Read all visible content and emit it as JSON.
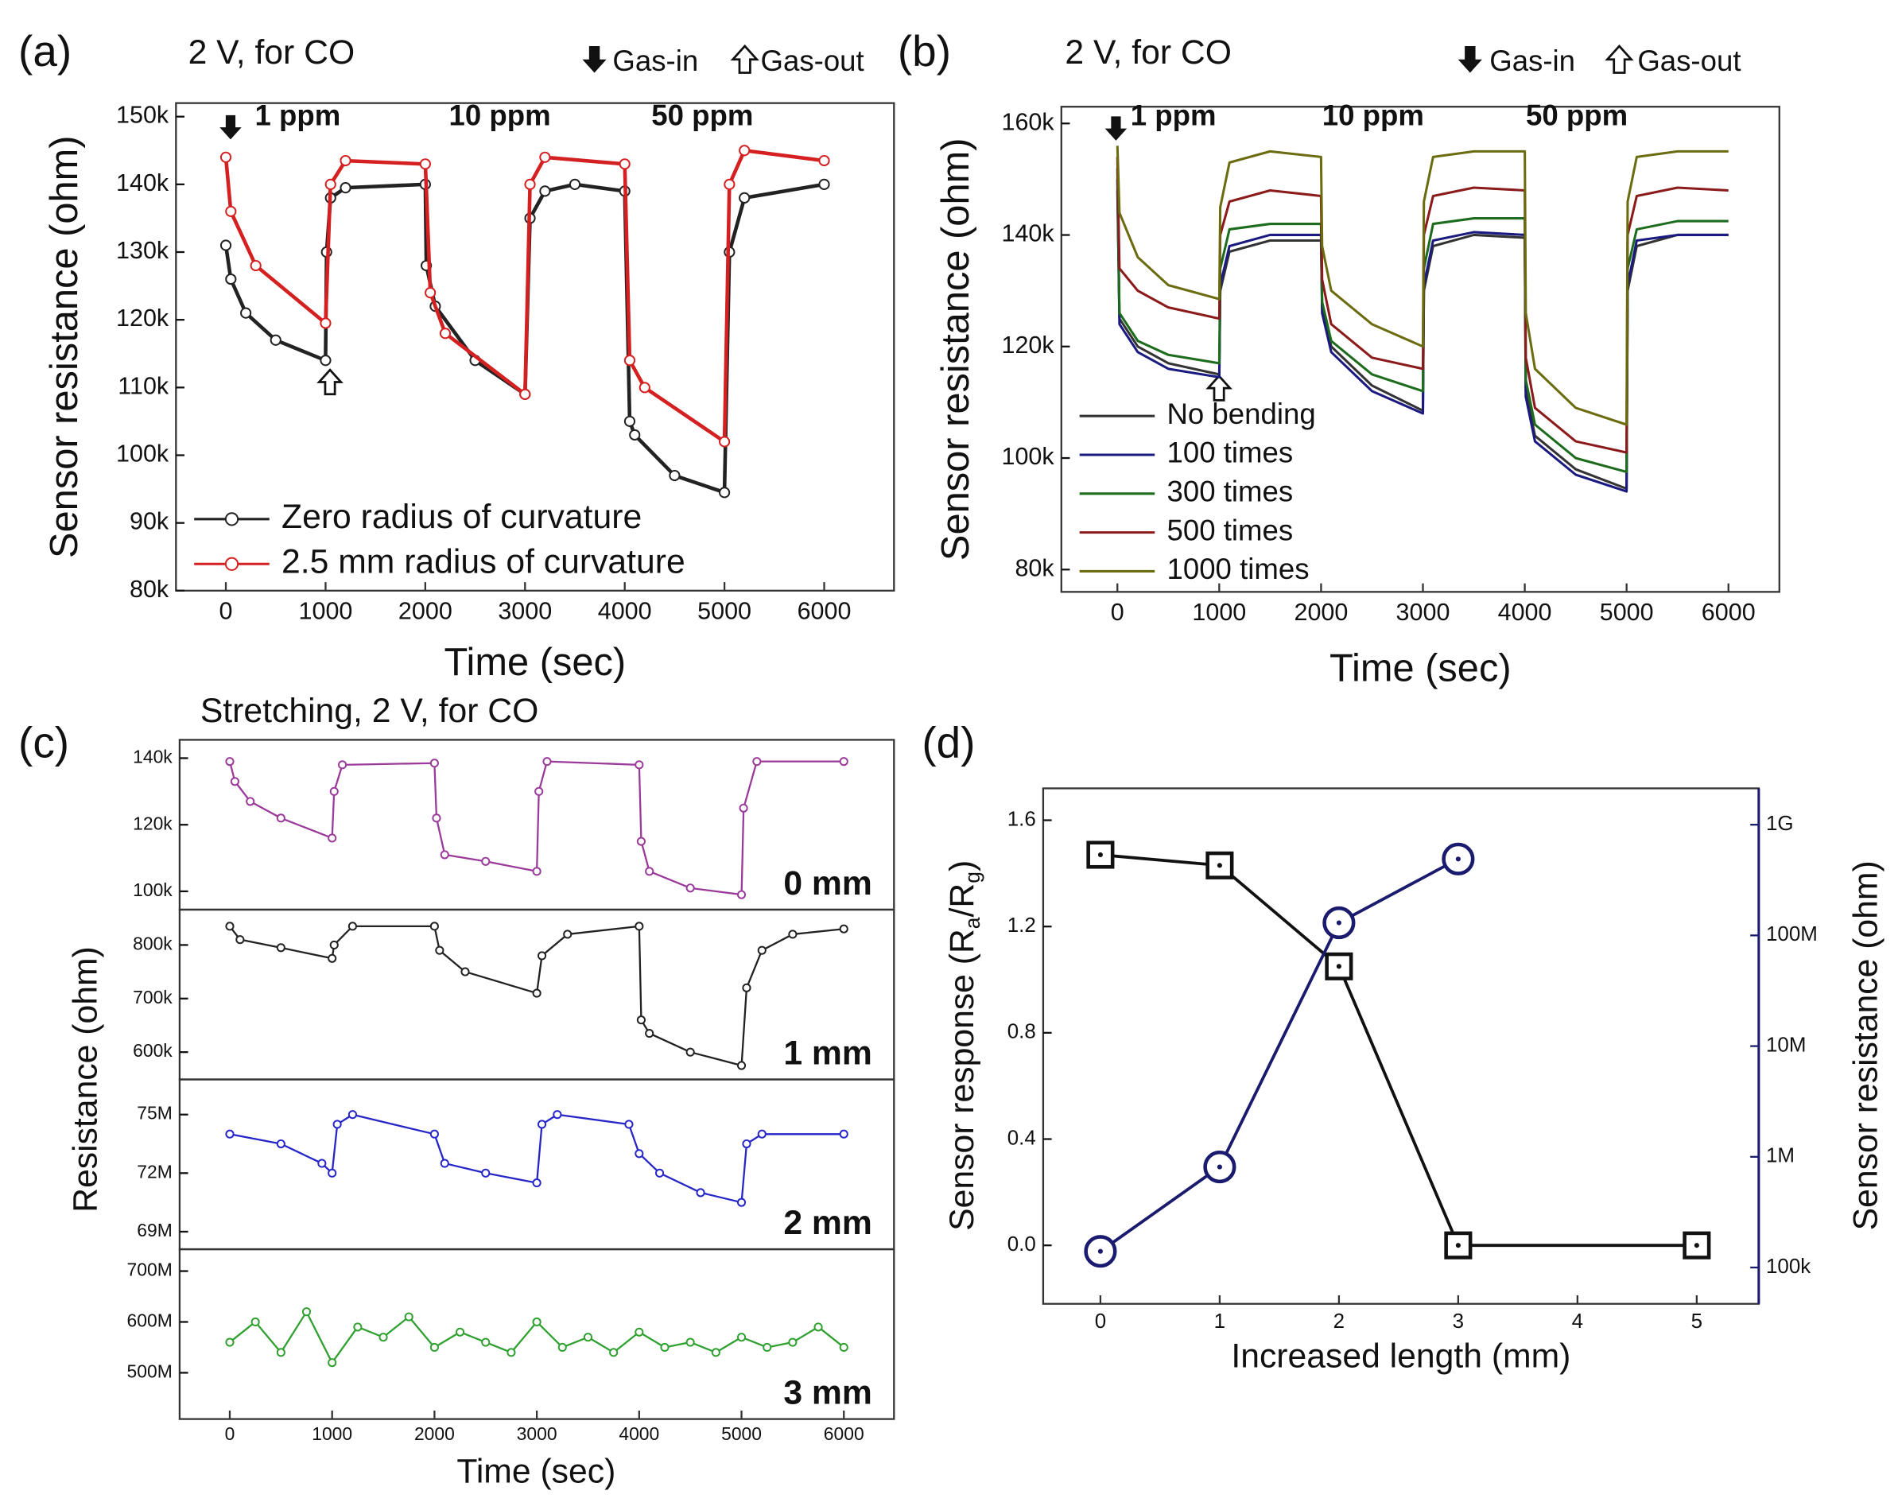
{
  "chart_data": [
    {
      "type": "line",
      "panel_label": "(a)",
      "title": "2 V, for CO",
      "annotations": {
        "gas_in": "Gas-in",
        "gas_out": "Gas-out",
        "concentrations": [
          "1 ppm",
          "10 ppm",
          "50 ppm"
        ]
      },
      "x_label": "Time (sec)",
      "y_label": "Sensor resistance (ohm)",
      "xlim": [
        -500,
        6700
      ],
      "xticks": [
        0,
        1000,
        2000,
        3000,
        4000,
        5000,
        6000
      ],
      "ylim": [
        80000,
        152000
      ],
      "yticks": [
        {
          "value": 80000,
          "label": "80k"
        },
        {
          "value": 90000,
          "label": "90k"
        },
        {
          "value": 100000,
          "label": "100k"
        },
        {
          "value": 110000,
          "label": "110k"
        },
        {
          "value": 120000,
          "label": "120k"
        },
        {
          "value": 130000,
          "label": "130k"
        },
        {
          "value": 140000,
          "label": "140k"
        },
        {
          "value": 150000,
          "label": "150k"
        }
      ],
      "legend": "lower left",
      "series": [
        {
          "name": "Zero radius of curvature",
          "color": "#222222",
          "marker": "circle",
          "x": [
            0,
            50,
            200,
            500,
            1000,
            1010,
            1050,
            1200,
            2000,
            2010,
            2100,
            2500,
            3000,
            3050,
            3200,
            3500,
            4000,
            4050,
            4100,
            4500,
            5000,
            5050,
            5200,
            6000
          ],
          "values": [
            131000,
            126000,
            121000,
            117000,
            114000,
            130000,
            138000,
            139500,
            140000,
            128000,
            122000,
            114000,
            109000,
            135000,
            139000,
            140000,
            139000,
            105000,
            103000,
            97000,
            94500,
            130000,
            138000,
            140000
          ]
        },
        {
          "name": "2.5 mm radius of curvature",
          "color": "#d42020",
          "marker": "circle",
          "x": [
            0,
            50,
            300,
            1000,
            1050,
            1200,
            2000,
            2050,
            2200,
            3000,
            3050,
            3200,
            4000,
            4050,
            4200,
            5000,
            5050,
            5200,
            6000
          ],
          "values": [
            144000,
            136000,
            128000,
            119500,
            140000,
            143500,
            143000,
            124000,
            118000,
            109000,
            140000,
            144000,
            143000,
            114000,
            110000,
            102000,
            140000,
            145000,
            143500
          ]
        }
      ]
    },
    {
      "type": "line",
      "panel_label": "(b)",
      "title": "2 V, for CO",
      "annotations": {
        "gas_in": "Gas-in",
        "gas_out": "Gas-out",
        "concentrations": [
          "1 ppm",
          "10 ppm",
          "50 ppm"
        ]
      },
      "x_label": "Time (sec)",
      "y_label": "Sensor resistance (ohm)",
      "xlim": [
        -550,
        6500
      ],
      "xticks": [
        0,
        1000,
        2000,
        3000,
        4000,
        5000,
        6000
      ],
      "ylim": [
        76000,
        163000
      ],
      "yticks": [
        {
          "value": 80000,
          "label": "80k"
        },
        {
          "value": 100000,
          "label": "100k"
        },
        {
          "value": 120000,
          "label": "120k"
        },
        {
          "value": 140000,
          "label": "140k"
        },
        {
          "value": 160000,
          "label": "160k"
        }
      ],
      "legend": "lower left",
      "x": [
        0,
        20,
        200,
        500,
        1000,
        1010,
        1100,
        1500,
        2000,
        2010,
        2100,
        2500,
        3000,
        3010,
        3100,
        3500,
        4000,
        4010,
        4100,
        4500,
        5000,
        5010,
        5100,
        5500,
        6000
      ],
      "series": [
        {
          "name": "No bending",
          "color": "#333333",
          "values": [
            148000,
            125000,
            120000,
            117000,
            115000,
            130000,
            137000,
            139000,
            139000,
            127000,
            120000,
            113000,
            108500,
            130000,
            138000,
            140000,
            139500,
            112000,
            104000,
            98000,
            94500,
            130000,
            138000,
            140000,
            140000
          ]
        },
        {
          "name": "100 times",
          "color": "#1a1a80",
          "values": [
            150000,
            124000,
            119000,
            116000,
            114500,
            131000,
            138000,
            140000,
            140000,
            126000,
            119000,
            112000,
            108000,
            131000,
            139000,
            140500,
            140000,
            111000,
            103000,
            97000,
            94000,
            131000,
            139000,
            140000,
            140000
          ]
        },
        {
          "name": "300 times",
          "color": "#1d6b1d",
          "values": [
            152000,
            126000,
            121000,
            118500,
            117000,
            134000,
            141000,
            142000,
            142000,
            128000,
            121000,
            115000,
            112000,
            134000,
            142000,
            143000,
            143000,
            114000,
            106000,
            100000,
            97500,
            134000,
            141000,
            142500,
            142500
          ]
        },
        {
          "name": "500 times",
          "color": "#8b1a1a",
          "values": [
            154000,
            134000,
            130000,
            127000,
            125000,
            140000,
            146000,
            148000,
            147000,
            132000,
            124000,
            118000,
            116000,
            140000,
            147000,
            148500,
            148000,
            118000,
            109000,
            103000,
            101000,
            140000,
            147000,
            148500,
            148000
          ]
        },
        {
          "name": "1000 times",
          "color": "#6b6b10",
          "values": [
            156000,
            144000,
            136000,
            131000,
            128500,
            145000,
            153000,
            155000,
            154000,
            138000,
            130000,
            124000,
            120000,
            146000,
            154000,
            155000,
            155000,
            126000,
            116000,
            109000,
            106000,
            146000,
            154000,
            155000,
            155000
          ]
        }
      ]
    },
    {
      "type": "line",
      "panel_label": "(c)",
      "title": "Stretching, 2 V, for CO",
      "x_label": "Time (sec)",
      "y_label": "Resistance (ohm)",
      "xlim": [
        -490,
        6490
      ],
      "xticks": [
        0,
        1000,
        2000,
        3000,
        4000,
        5000,
        6000
      ],
      "panels": [
        {
          "label": "0 mm",
          "label_color": "#8b1010",
          "color": "#9a3a9a",
          "marker": "circle",
          "ylim": [
            94500,
            145500
          ],
          "yticks": [
            {
              "value": 100000,
              "label": "100k"
            },
            {
              "value": 120000,
              "label": "120k"
            },
            {
              "value": 140000,
              "label": "140k"
            }
          ],
          "x": [
            0,
            50,
            200,
            500,
            1000,
            1020,
            1100,
            2000,
            2020,
            2100,
            2500,
            3000,
            3020,
            3100,
            4000,
            4020,
            4100,
            4500,
            5000,
            5020,
            5150,
            6000
          ],
          "values": [
            139000,
            133000,
            127000,
            122000,
            116000,
            130000,
            138000,
            138500,
            122000,
            111000,
            109000,
            106000,
            130000,
            139000,
            138000,
            115000,
            106000,
            101000,
            99000,
            125000,
            139000,
            139000
          ]
        },
        {
          "label": "1 mm",
          "label_color": "#111111",
          "color": "#222222",
          "marker": "circle",
          "ylim": [
            549000,
            866000
          ],
          "yticks": [
            {
              "value": 600000,
              "label": "600k"
            },
            {
              "value": 700000,
              "label": "700k"
            },
            {
              "value": 800000,
              "label": "800k"
            }
          ],
          "x": [
            0,
            100,
            500,
            1000,
            1020,
            1200,
            2000,
            2050,
            2300,
            3000,
            3050,
            3300,
            4000,
            4020,
            4100,
            4500,
            5000,
            5050,
            5200,
            5500,
            6000
          ],
          "values": [
            835000,
            810000,
            795000,
            775000,
            800000,
            835000,
            835000,
            790000,
            750000,
            710000,
            780000,
            820000,
            835000,
            660000,
            635000,
            600000,
            575000,
            720000,
            790000,
            820000,
            830000
          ]
        },
        {
          "label": "2 mm",
          "label_color": "#1a2a90",
          "color": "#2626c8",
          "marker": "circle",
          "ylim": [
            68100000,
            76800000
          ],
          "yticks": [
            {
              "value": 69000000,
              "label": "69M"
            },
            {
              "value": 72000000,
              "label": "72M"
            },
            {
              "value": 75000000,
              "label": "75M"
            }
          ],
          "x": [
            0,
            500,
            900,
            1000,
            1050,
            1200,
            2000,
            2100,
            2500,
            3000,
            3050,
            3200,
            3900,
            4000,
            4200,
            4600,
            5000,
            5050,
            5200,
            6000
          ],
          "values": [
            74000000,
            73500000,
            72500000,
            72000000,
            74500000,
            75000000,
            74000000,
            72500000,
            72000000,
            71500000,
            74500000,
            75000000,
            74500000,
            73000000,
            72000000,
            71000000,
            70500000,
            73500000,
            74000000,
            74000000
          ]
        },
        {
          "label": "3 mm",
          "label_color": "#1a6a1a",
          "color": "#30a030",
          "marker": "circle",
          "ylim": [
            409000000,
            743000000
          ],
          "yticks": [
            {
              "value": 500000000,
              "label": "500M"
            },
            {
              "value": 600000000,
              "label": "600M"
            },
            {
              "value": 700000000,
              "label": "700M"
            }
          ],
          "x": [
            0,
            250,
            500,
            750,
            1000,
            1250,
            1500,
            1750,
            2000,
            2250,
            2500,
            2750,
            3000,
            3250,
            3500,
            3750,
            4000,
            4250,
            4500,
            4750,
            5000,
            5250,
            5500,
            5750,
            6000
          ],
          "values": [
            560000000,
            600000000,
            540000000,
            620000000,
            520000000,
            590000000,
            570000000,
            610000000,
            550000000,
            580000000,
            560000000,
            540000000,
            600000000,
            550000000,
            570000000,
            540000000,
            580000000,
            550000000,
            560000000,
            540000000,
            570000000,
            550000000,
            560000000,
            590000000,
            550000000
          ]
        }
      ]
    },
    {
      "type": "line",
      "panel_label": "(d)",
      "x_label": "Increased length (mm)",
      "y_label_parts": [
        "Sensor response (R",
        "a",
        "/R",
        "g",
        ")"
      ],
      "y2_label": "Sensor resistance (ohm)",
      "y2_color": "#1a1a6e",
      "xlim": [
        -0.48,
        5.52
      ],
      "xticks": [
        0,
        1,
        2,
        3,
        4,
        5
      ],
      "ylim": [
        -0.22,
        1.72
      ],
      "yticks": [
        {
          "value": 0,
          "label": "0.0"
        },
        0.4,
        0.8,
        1.2,
        1.6
      ],
      "y2lim": [
        47000,
        2130000000
      ],
      "y2log": true,
      "y2ticks": [
        {
          "value": 100000,
          "label": "100k"
        },
        {
          "value": 1000000,
          "label": "1M"
        },
        {
          "value": 10000000,
          "label": "10M"
        },
        {
          "value": 100000000,
          "label": "100M"
        },
        {
          "value": 1000000000,
          "label": "1G"
        }
      ],
      "series": [
        {
          "color": "#111111",
          "marker": "square",
          "x": [
            0,
            1,
            2,
            3,
            5
          ],
          "values": [
            1.47,
            1.43,
            1.05,
            0.0,
            0.0
          ]
        },
        {
          "color": "#1a1a6e",
          "marker": "circle",
          "axis": "y2",
          "x": [
            0,
            1,
            2,
            3
          ],
          "values": [
            140000,
            810000,
            130000000,
            490000000
          ]
        }
      ]
    }
  ]
}
